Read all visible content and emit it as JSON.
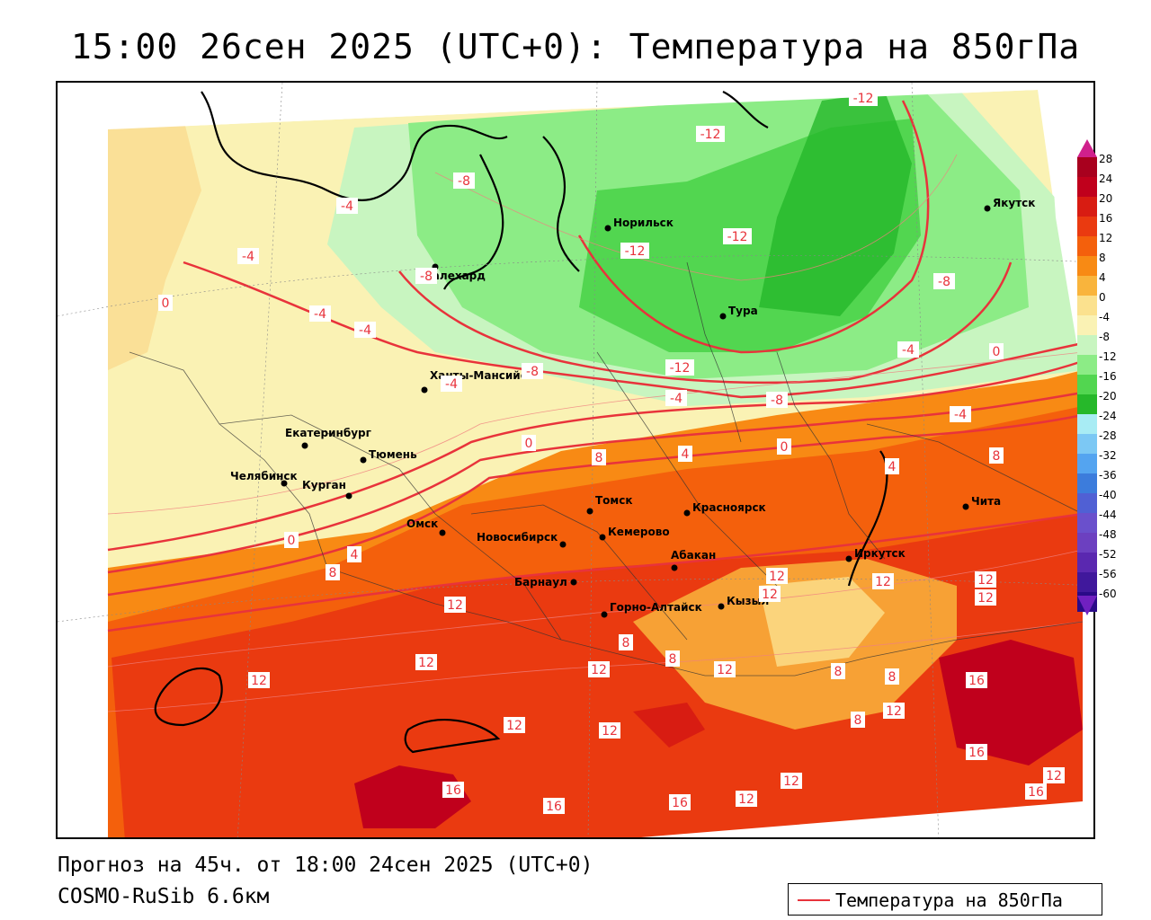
{
  "header": {
    "title": "15:00 26сен 2025 (UTC+0): Температура на 850гПа"
  },
  "footer": {
    "forecast": "Прогноз на 45ч. от 18:00 24сен 2025 (UTC+0)",
    "model": "COSMO-RuSib 6.6км"
  },
  "legend": {
    "label": "Температура на 850гПа",
    "line_color": "#e8333b"
  },
  "colorbar": {
    "labels": [
      "28",
      "24",
      "20",
      "16",
      "12",
      "8",
      "4",
      "0",
      "-4",
      "-8",
      "-12",
      "-16",
      "-20",
      "-24",
      "-28",
      "-32",
      "-36",
      "-40",
      "-44",
      "-48",
      "-52",
      "-56",
      "-60"
    ],
    "colors": [
      "#a8001e",
      "#c0001c",
      "#d81c12",
      "#ea3a10",
      "#f4600c",
      "#f88a14",
      "#f9b43c",
      "#fbe18e",
      "#faf2b4",
      "#c8f5c0",
      "#8cec86",
      "#52d650",
      "#26b82a",
      "#a8ecf4",
      "#7cc8f4",
      "#54a4f0",
      "#3c7cdc",
      "#5060d4",
      "#6a50cc",
      "#6c40c0",
      "#5a28b0",
      "#40189c",
      "#2a0a88"
    ],
    "top_arrow_color": "#d0208c",
    "bottom_arrow_color": "#7020c0"
  },
  "map": {
    "cities": [
      {
        "name": "Норильск"
      },
      {
        "name": "Якутск"
      },
      {
        "name": "Салехард"
      },
      {
        "name": "Тура"
      },
      {
        "name": "Ханты-Мансийск"
      },
      {
        "name": "Екатеринбург"
      },
      {
        "name": "Тюмень"
      },
      {
        "name": "Челябинск"
      },
      {
        "name": "Курган"
      },
      {
        "name": "Омск"
      },
      {
        "name": "Томск"
      },
      {
        "name": "Красноярск"
      },
      {
        "name": "Новосибирск"
      },
      {
        "name": "Кемерово"
      },
      {
        "name": "Абакан"
      },
      {
        "name": "Барнаул"
      },
      {
        "name": "Горно-Алтайск"
      },
      {
        "name": "Кызыл"
      },
      {
        "name": "Иркутск"
      },
      {
        "name": "Чита"
      }
    ],
    "contour_labels": [
      "-12",
      "-12",
      "-12",
      "-12",
      "-12",
      "-8",
      "-8",
      "-8",
      "-8",
      "-8",
      "-4",
      "-4",
      "-4",
      "-4",
      "-4",
      "-4",
      "-4",
      "-4",
      "0",
      "0",
      "0",
      "0",
      "0",
      "8",
      "4",
      "4",
      "4",
      "8",
      "8",
      "8",
      "8",
      "8",
      "8",
      "8",
      "12",
      "12",
      "12",
      "12",
      "12",
      "12",
      "12",
      "12",
      "12",
      "12",
      "12",
      "12",
      "12",
      "12",
      "12",
      "16",
      "16",
      "16",
      "16",
      "16",
      "12",
      "16"
    ]
  }
}
